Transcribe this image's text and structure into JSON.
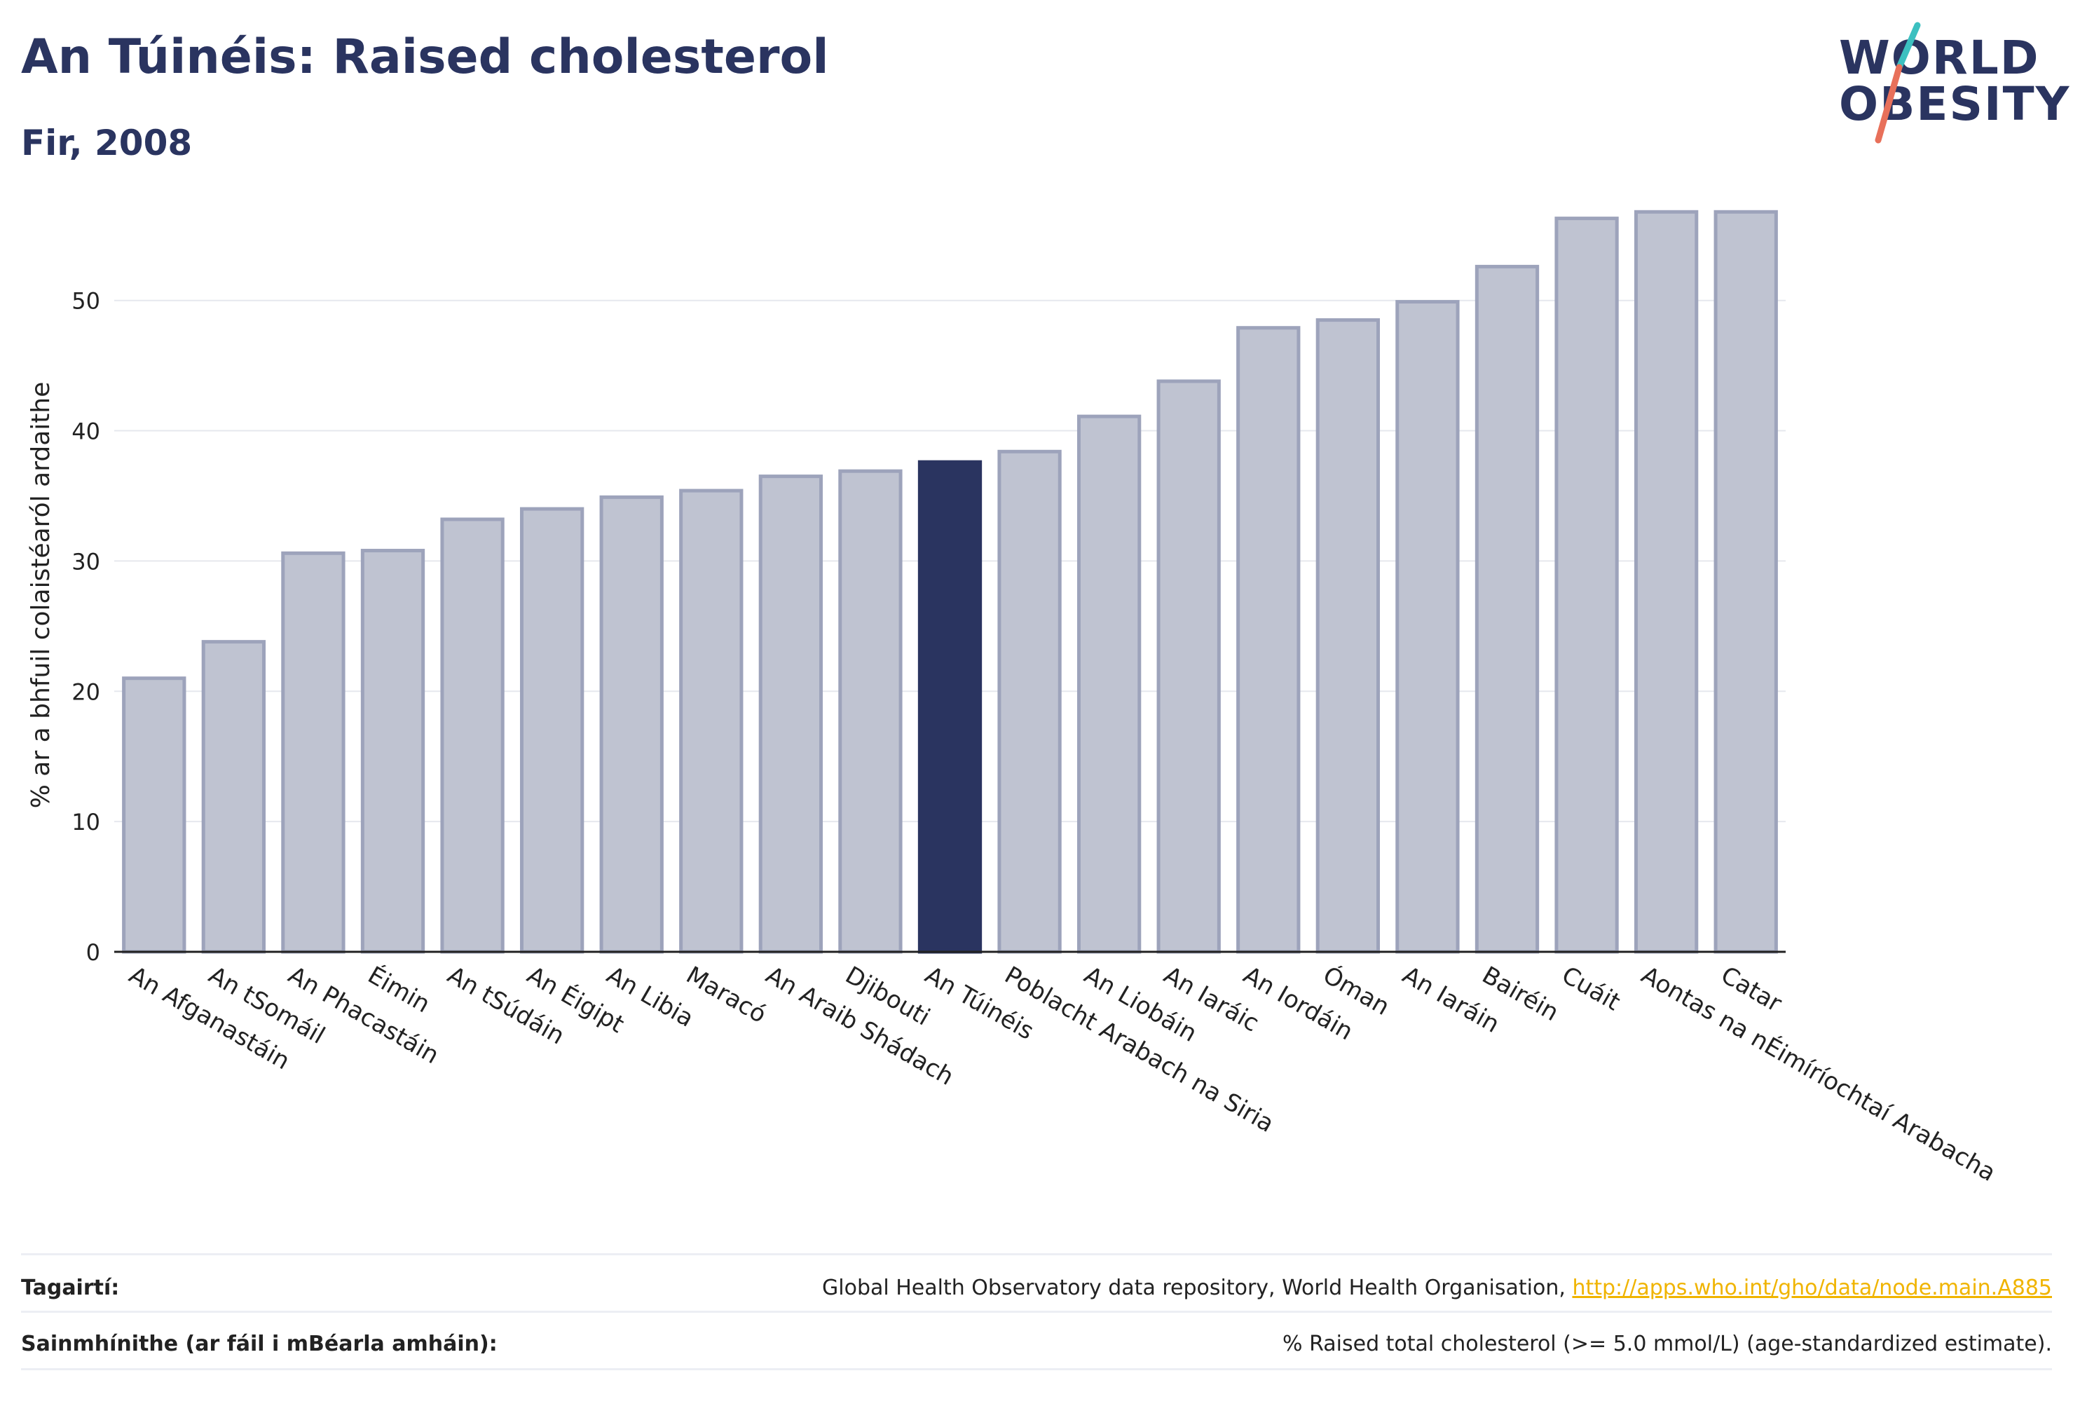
{
  "header": {
    "title": "An Túinéis: Raised cholesterol",
    "subtitle": "Fir, 2008"
  },
  "logo": {
    "line1": "WORLD",
    "line2": "OBESITY",
    "colors": {
      "text": "#2a3460",
      "slash_top": "#3cc0c0",
      "slash_bottom": "#e8705a"
    }
  },
  "chart_data": {
    "type": "bar",
    "title": "An Túinéis: Raised cholesterol",
    "subtitle": "Fir, 2008",
    "ylabel": "% ar a bhfuil colaistéaról ardaithe",
    "xlabel": "",
    "ylim": [
      0,
      58
    ],
    "yticks": [
      0,
      10,
      20,
      30,
      40,
      50
    ],
    "grid": true,
    "highlight": "An Túinéis",
    "colors": {
      "bar": "#bfc3d1",
      "bar_border": "#9da3bb",
      "highlight": "#2a3460"
    },
    "categories": [
      "An Afganastáin",
      "An tSomáil",
      "An Phacastáin",
      "Éimin",
      "An tSúdáin",
      "An Éigipt",
      "An Libia",
      "Maracó",
      "An Araib Shádach",
      "Djibouti",
      "An Túinéis",
      "Poblacht Arabach na Siria",
      "An Liobáin",
      "An Iaráic",
      "An Iordáin",
      "Óman",
      "An Iaráin",
      "Bairéin",
      "Cuáit",
      "Aontas na nÉimíríochtaí Arabacha",
      "Catar"
    ],
    "values": [
      21.0,
      23.8,
      30.6,
      30.8,
      33.2,
      34.0,
      34.9,
      35.4,
      36.5,
      36.9,
      37.6,
      38.4,
      41.1,
      43.8,
      47.9,
      48.5,
      49.9,
      52.6,
      56.3,
      56.8,
      56.8
    ]
  },
  "footer": {
    "references_label": "Tagairtí:",
    "references_text": "Global Health Observatory data repository, World Health Organisation, ",
    "references_link": "http://apps.who.int/gho/data/node.main.A885",
    "definitions_label": "Sainmhínithe (ar fáil i mBéarla amháin):",
    "definitions_text": "% Raised total cholesterol (>= 5.0 mmol/L) (age-standardized estimate)."
  }
}
